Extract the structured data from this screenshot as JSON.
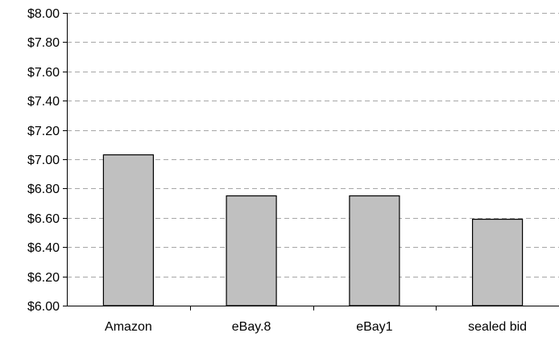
{
  "chart_data": {
    "type": "bar",
    "categories": [
      "Amazon",
      "eBay.8",
      "eBay1",
      "sealed bid"
    ],
    "values": [
      7.03,
      6.75,
      6.75,
      6.59
    ],
    "ylim": [
      6.0,
      8.0
    ],
    "ytick_step": 0.2,
    "ytick_labels": [
      "$6.00",
      "$6.20",
      "$6.40",
      "$6.60",
      "$6.80",
      "$7.00",
      "$7.20",
      "$7.40",
      "$7.60",
      "$7.80",
      "$8.00"
    ],
    "grid": true,
    "title": "",
    "xlabel": "",
    "ylabel": "",
    "colors": {
      "bar_fill": "#c0c0c0",
      "bar_stroke": "#000000",
      "grid": "#a6a6a6",
      "axis": "#000000"
    }
  }
}
